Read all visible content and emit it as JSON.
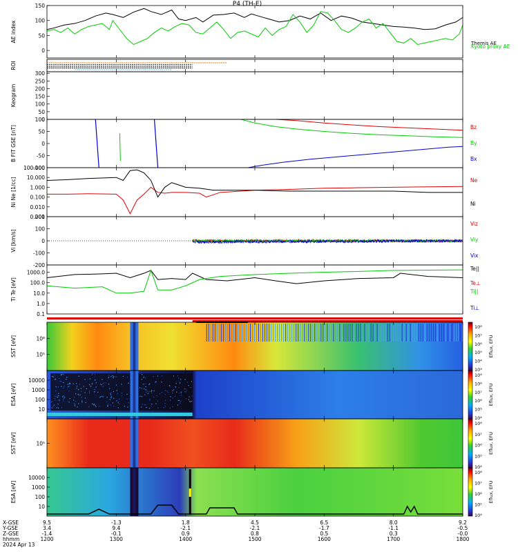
{
  "title": "P4 (TH-E)",
  "x_tick_rows": {
    "labels": [
      "X-GSE",
      "Y-GSE",
      "Z-GSE",
      "hhmm",
      "2024 Apr 13"
    ],
    "columns": [
      [
        "9.5",
        "3.4",
        "-1.4",
        "1200"
      ],
      [
        "-1.3",
        "9.4",
        "-0.1",
        "1300"
      ],
      [
        "1.8",
        "-2.1",
        "0.9",
        "1400"
      ],
      [
        "4.5",
        "-2.1",
        "0.8",
        "1500"
      ],
      [
        "6.5",
        "-1.7",
        "0.5",
        "1600"
      ],
      [
        "8.0",
        "-1.1",
        "0.3",
        "1700"
      ],
      [
        "9.2",
        "-0.5",
        "-0.0",
        "1800"
      ]
    ]
  },
  "colors": {
    "black": "#000000",
    "green": "#00cc00",
    "red": "#dd0000",
    "blue": "#0000cc",
    "orange": "#ee7700"
  },
  "chart_data": [
    {
      "type": "line",
      "panel": "ae",
      "ylabel": "AE index",
      "ylim": [
        -25,
        150
      ],
      "yticks": [
        "150",
        "100",
        "50",
        "0"
      ],
      "yticks_values": [
        150,
        100,
        50,
        0
      ],
      "x_range_hours": [
        12,
        18
      ],
      "series": [
        {
          "name": "Themis AE",
          "color": "#000000",
          "x": [
            12.0,
            12.1,
            12.25,
            12.4,
            12.55,
            12.7,
            12.85,
            12.95,
            13.1,
            13.25,
            13.4,
            13.5,
            13.65,
            13.8,
            13.9,
            14.0,
            14.15,
            14.25,
            14.4,
            14.55,
            14.7,
            14.85,
            14.95,
            15.05,
            15.2,
            15.35,
            15.5,
            15.65,
            15.8,
            15.95,
            16.1,
            16.25,
            16.4,
            16.55,
            16.7,
            16.85,
            17.0,
            17.15,
            17.3,
            17.45,
            17.6,
            17.75,
            17.9,
            18.0
          ],
          "y": [
            70,
            75,
            85,
            90,
            100,
            115,
            125,
            120,
            110,
            128,
            140,
            130,
            120,
            135,
            105,
            100,
            110,
            95,
            118,
            120,
            125,
            110,
            122,
            115,
            105,
            95,
            100,
            115,
            105,
            125,
            100,
            115,
            108,
            95,
            90,
            85,
            80,
            78,
            75,
            70,
            72,
            85,
            95,
            110
          ]
        },
        {
          "name": "Kyoto proxy AE",
          "color": "#00cc00",
          "x": [
            12.0,
            12.1,
            12.2,
            12.3,
            12.4,
            12.5,
            12.6,
            12.7,
            12.8,
            12.9,
            12.95,
            13.05,
            13.15,
            13.25,
            13.35,
            13.45,
            13.55,
            13.65,
            13.75,
            13.85,
            13.95,
            14.05,
            14.15,
            14.25,
            14.35,
            14.45,
            14.55,
            14.65,
            14.75,
            14.85,
            14.95,
            15.05,
            15.15,
            15.25,
            15.35,
            15.45,
            15.55,
            15.65,
            15.75,
            15.85,
            15.95,
            16.05,
            16.15,
            16.25,
            16.35,
            16.45,
            16.55,
            16.65,
            16.75,
            16.85,
            16.95,
            17.05,
            17.15,
            17.25,
            17.35,
            17.45,
            17.55,
            17.65,
            17.75,
            17.85,
            17.95,
            18.0
          ],
          "y": [
            65,
            70,
            60,
            75,
            55,
            70,
            80,
            85,
            90,
            70,
            100,
            70,
            40,
            20,
            30,
            40,
            60,
            75,
            65,
            80,
            90,
            85,
            60,
            55,
            75,
            95,
            70,
            40,
            60,
            65,
            55,
            45,
            75,
            50,
            70,
            80,
            120,
            95,
            60,
            85,
            130,
            125,
            100,
            70,
            60,
            75,
            95,
            105,
            75,
            90,
            60,
            30,
            25,
            40,
            20,
            25,
            30,
            35,
            40,
            35,
            55,
            85
          ]
        }
      ]
    },
    {
      "type": "line",
      "panel": "roi",
      "ylabel": "ROI",
      "series": [
        {
          "color": "#ee7700",
          "x": [
            12.0,
            14.6
          ]
        },
        {
          "color": "#dd0000",
          "x": [
            12.0,
            14.1
          ]
        },
        {
          "color": "#000000",
          "x": [
            12.0,
            14.1
          ]
        },
        {
          "color": "#000000",
          "x": [
            12.0,
            14.1
          ]
        },
        {
          "color": "#4fc3e0",
          "x": [
            12.4,
            13.8
          ]
        }
      ]
    },
    {
      "type": "heatmap",
      "panel": "keogram",
      "ylabel": "Keogram",
      "yticks": [
        "300",
        "250",
        "200",
        "150",
        "100",
        "50",
        "0"
      ],
      "yticks_values": [
        300,
        250,
        200,
        150,
        100,
        50,
        0
      ],
      "ylim": [
        0,
        310
      ]
    },
    {
      "type": "line",
      "panel": "bfield",
      "ylabel": "B FIT GSE [nT]",
      "ylim": [
        -100,
        100
      ],
      "yticks": [
        "100",
        "50",
        "0",
        "-50",
        "-100"
      ],
      "yticks_values": [
        100,
        50,
        0,
        -50,
        -100
      ],
      "series": [
        {
          "name": "Bz",
          "color": "#dd0000",
          "x": [
            15.3,
            15.6,
            16.0,
            16.4,
            16.8,
            17.2,
            17.6,
            18.0
          ],
          "y": [
            100,
            95,
            85,
            77,
            70,
            65,
            60,
            55
          ]
        },
        {
          "name": "By",
          "color": "#00cc00",
          "x": [
            14.8,
            15.0,
            15.3,
            15.6,
            16.0,
            16.4,
            16.8,
            17.2,
            17.6,
            18.0
          ],
          "y": [
            100,
            85,
            70,
            60,
            50,
            42,
            36,
            32,
            28,
            25
          ]
        },
        {
          "name": "Bx",
          "color": "#0000cc",
          "x": [
            14.9,
            15.1,
            15.4,
            15.8,
            16.2,
            16.6,
            17.0,
            17.4,
            17.8,
            18.0
          ],
          "y": [
            -100,
            -90,
            -78,
            -65,
            -55,
            -45,
            -35,
            -25,
            -15,
            -12
          ]
        }
      ]
    },
    {
      "type": "line",
      "panel": "density",
      "ylabel": "Ni Ne [1/cc]",
      "log": true,
      "yticks": [
        "100.000",
        "10.000",
        "1.000",
        "0.100",
        "0.010",
        "0.001"
      ],
      "yticks_values": [
        100,
        10,
        1,
        0.1,
        0.01,
        0.001
      ],
      "ylim": [
        0.001,
        100
      ],
      "series": [
        {
          "name": "Ne",
          "color": "#dd0000",
          "x": [
            12.0,
            12.3,
            12.6,
            13.0,
            13.1,
            13.2,
            13.3,
            13.4,
            13.5,
            13.6,
            13.7,
            13.8,
            14.0,
            14.2,
            14.3,
            14.5,
            14.8,
            15.0,
            15.5,
            16.0,
            16.5,
            17.0,
            17.5,
            18.0
          ],
          "y": [
            0.2,
            0.2,
            0.22,
            0.2,
            0.05,
            0.002,
            0.05,
            0.2,
            1.0,
            0.3,
            0.25,
            0.3,
            0.3,
            0.25,
            0.1,
            0.3,
            0.4,
            0.5,
            0.6,
            0.8,
            0.9,
            1.0,
            1.1,
            1.2
          ]
        },
        {
          "name": "Ni",
          "color": "#000000",
          "x": [
            12.0,
            12.3,
            12.6,
            13.0,
            13.1,
            13.2,
            13.3,
            13.4,
            13.5,
            13.6,
            13.7,
            13.8,
            14.0,
            14.2,
            14.4,
            14.6,
            15.0,
            15.5,
            16.0,
            16.5,
            17.0,
            17.5,
            18.0
          ],
          "y": [
            5,
            6,
            8,
            10,
            5,
            50,
            60,
            30,
            5,
            0.1,
            1,
            3,
            1,
            0.8,
            0.5,
            0.5,
            0.5,
            0.4,
            0.4,
            0.4,
            0.4,
            0.3,
            0.3
          ]
        }
      ]
    },
    {
      "type": "line",
      "panel": "velocity",
      "ylabel": "Vi [km/s]",
      "ylim": [
        -200,
        200
      ],
      "yticks": [
        "200",
        "100",
        "0",
        "-100",
        "-200"
      ],
      "yticks_values": [
        200,
        100,
        0,
        -100,
        -200
      ],
      "series": [
        {
          "name": "Viz",
          "color": "#dd0000",
          "x": [
            14.1,
            18.0
          ],
          "y": [
            0,
            0
          ]
        },
        {
          "name": "Viy",
          "color": "#00cc00",
          "x": [
            14.1,
            18.0
          ],
          "y": [
            0,
            0
          ]
        },
        {
          "name": "Vix",
          "color": "#0000cc",
          "x": [
            14.1,
            18.0
          ],
          "y": [
            -10,
            0
          ]
        }
      ]
    },
    {
      "type": "line",
      "panel": "temperature",
      "ylabel": "Ti Te [eV]",
      "log": true,
      "yticks": [
        "1000.0",
        "100.0",
        "10.0",
        "1.0",
        "0.1"
      ],
      "yticks_values": [
        1000,
        100,
        10,
        1,
        0.1
      ],
      "ylim": [
        0.1,
        5000
      ],
      "series": [
        {
          "name": "Te||",
          "color": "#000000",
          "x": [
            12.0,
            12.4,
            12.8,
            13.0,
            13.2,
            13.4,
            13.5,
            13.6,
            13.8,
            14.0,
            14.1,
            14.3,
            14.6,
            15.0,
            15.3,
            15.6,
            16.0,
            16.5,
            17.0,
            17.1,
            17.5,
            18.0
          ],
          "y": [
            300,
            600,
            700,
            800,
            300,
            800,
            1500,
            200,
            250,
            200,
            800,
            200,
            150,
            300,
            150,
            80,
            150,
            250,
            300,
            800,
            400,
            300
          ]
        },
        {
          "name": "Te⊥",
          "color": "#dd0000"
        },
        {
          "name": "Ti||",
          "color": "#00cc00",
          "x": [
            12.0,
            12.4,
            12.8,
            13.0,
            13.2,
            13.4,
            13.5,
            13.6,
            13.8,
            14.0,
            14.2,
            14.5,
            15.0,
            15.5,
            16.0,
            16.5,
            17.0,
            17.5,
            18.0
          ],
          "y": [
            50,
            30,
            40,
            10,
            10,
            15,
            1500,
            20,
            20,
            50,
            200,
            400,
            600,
            800,
            1000,
            1200,
            1500,
            1600,
            1700
          ]
        },
        {
          "name": "Ti⊥",
          "color": "#0000cc"
        }
      ]
    },
    {
      "type": "heatmap",
      "panel": "sst_e",
      "ylabel": "SST [eV]",
      "log": true,
      "yticks": [
        "10⁶",
        "10⁵"
      ],
      "colorbar": [
        "10⁸",
        "10⁷",
        "10⁶",
        "10⁵",
        "10⁴",
        "10³"
      ],
      "colorbar_label": "Eflux, EFU"
    },
    {
      "type": "heatmap",
      "panel": "esa_e",
      "ylabel": "ESA [eV]",
      "log": true,
      "yticks": [
        "10000",
        "1000",
        "100",
        "10"
      ],
      "colorbar": [
        "10⁹",
        "10⁸",
        "10⁷",
        "10⁶",
        "10⁵",
        "10⁴"
      ],
      "colorbar_label": "Eflux, EFU"
    },
    {
      "type": "heatmap",
      "panel": "sst_i",
      "ylabel": "SST [eV]",
      "log": true,
      "yticks": [
        "10⁵"
      ],
      "colorbar": [
        "10⁸",
        "10⁷",
        "10⁶",
        "10⁵",
        "10⁴"
      ],
      "colorbar_label": "Eflux, EFU"
    },
    {
      "type": "heatmap",
      "panel": "esa_i",
      "ylabel": "ESA [eV]",
      "log": true,
      "yticks": [
        "10000",
        "1000",
        "100",
        "10"
      ],
      "colorbar": [
        "10⁸",
        "10⁷",
        "10⁶",
        "10⁵",
        "10⁴"
      ],
      "colorbar_label": "Eflux, EFU"
    }
  ]
}
